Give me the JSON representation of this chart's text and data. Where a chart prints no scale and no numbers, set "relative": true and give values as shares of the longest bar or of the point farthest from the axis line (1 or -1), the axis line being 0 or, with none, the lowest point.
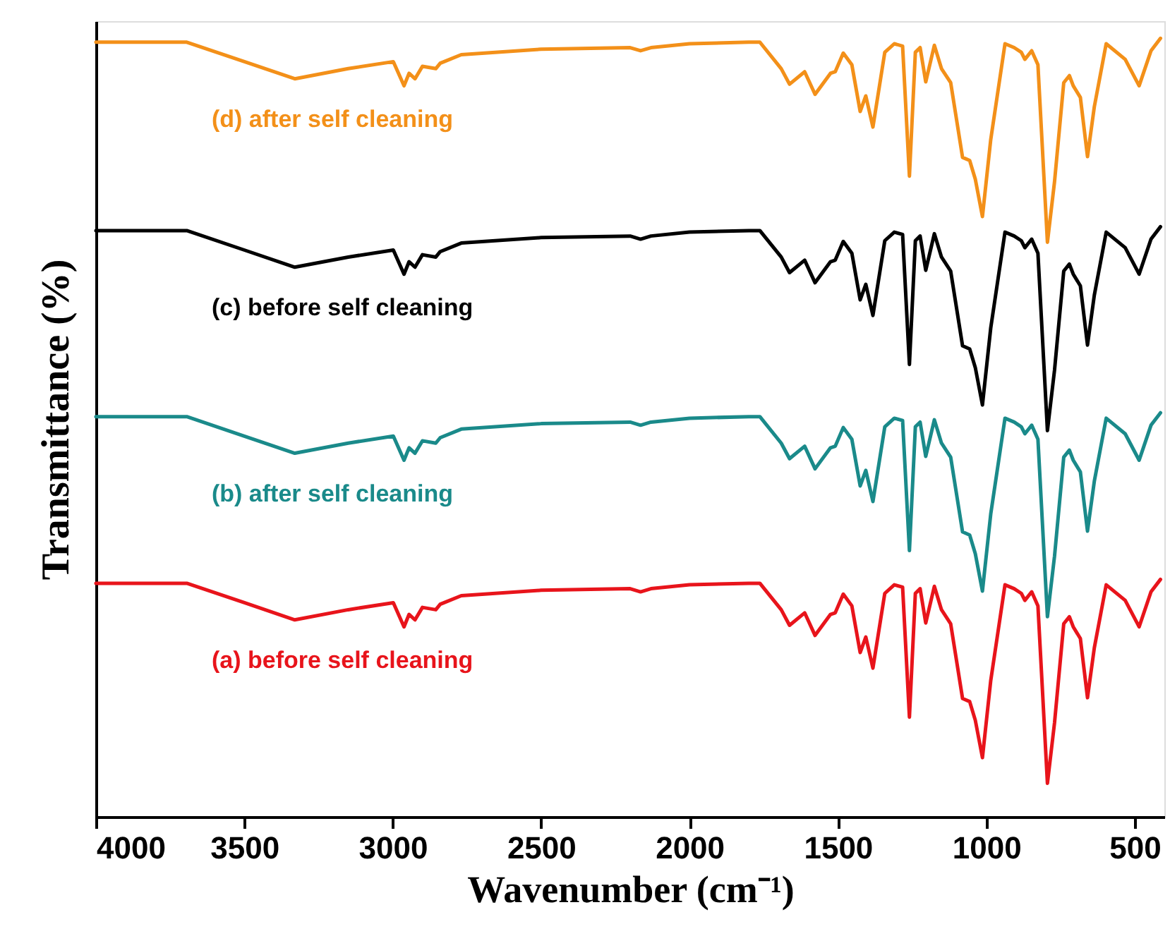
{
  "chart_data": {
    "type": "line",
    "relative": true,
    "xlabel": "Wavenumber (cm⁻¹)",
    "ylabel": "Transmittance (%)",
    "x": [
      4000,
      3694,
      3500,
      3330,
      3150,
      2998,
      2962,
      2945,
      2925,
      2900,
      2855,
      2840,
      2769,
      2500,
      2200,
      2165,
      2130,
      2000,
      1800,
      1763,
      1691,
      1663,
      1612,
      1577,
      1525,
      1509,
      1482,
      1453,
      1425,
      1406,
      1382,
      1342,
      1310,
      1282,
      1259,
      1239,
      1223,
      1204,
      1175,
      1151,
      1120,
      1080,
      1056,
      1037,
      1013,
      985,
      937,
      906,
      882,
      870,
      847,
      826,
      794,
      770,
      739,
      720,
      707,
      683,
      659,
      636,
      596,
      532,
      485,
      445,
      413
    ],
    "xlim": [
      4000,
      400
    ],
    "xticks": [
      4000,
      3500,
      3000,
      2500,
      2000,
      1500,
      1000,
      500
    ],
    "grid": false,
    "series": [
      {
        "name": "(a) before self cleaning",
        "color": "#e8141b",
        "values": [
          0.3,
          0.3,
          0.275,
          0.253,
          0.266,
          0.275,
          0.244,
          0.26,
          0.253,
          0.269,
          0.266,
          0.273,
          0.284,
          0.291,
          0.293,
          0.289,
          0.293,
          0.298,
          0.3,
          0.3,
          0.266,
          0.246,
          0.262,
          0.233,
          0.26,
          0.262,
          0.286,
          0.271,
          0.211,
          0.231,
          0.191,
          0.287,
          0.298,
          0.295,
          0.128,
          0.287,
          0.293,
          0.249,
          0.296,
          0.266,
          0.248,
          0.152,
          0.148,
          0.124,
          0.076,
          0.175,
          0.298,
          0.293,
          0.287,
          0.278,
          0.289,
          0.271,
          0.043,
          0.121,
          0.248,
          0.257,
          0.244,
          0.229,
          0.153,
          0.217,
          0.298,
          0.278,
          0.244,
          0.289,
          0.305
        ]
      },
      {
        "name": "(b) after self cleaning",
        "color": "#1a8a8a",
        "values": [
          0.514,
          0.514,
          0.489,
          0.467,
          0.48,
          0.489,
          0.458,
          0.474,
          0.467,
          0.483,
          0.48,
          0.487,
          0.498,
          0.505,
          0.507,
          0.503,
          0.507,
          0.512,
          0.514,
          0.514,
          0.48,
          0.46,
          0.476,
          0.447,
          0.474,
          0.476,
          0.5,
          0.485,
          0.425,
          0.445,
          0.405,
          0.501,
          0.512,
          0.509,
          0.342,
          0.501,
          0.507,
          0.463,
          0.51,
          0.48,
          0.462,
          0.366,
          0.362,
          0.338,
          0.29,
          0.389,
          0.512,
          0.507,
          0.501,
          0.492,
          0.503,
          0.485,
          0.257,
          0.335,
          0.462,
          0.471,
          0.458,
          0.443,
          0.367,
          0.431,
          0.512,
          0.492,
          0.458,
          0.503,
          0.519
        ]
      },
      {
        "name": "(c) before self cleaning",
        "color": "#000000",
        "values": [
          0.753,
          0.753,
          0.728,
          0.706,
          0.719,
          0.728,
          0.697,
          0.713,
          0.706,
          0.722,
          0.719,
          0.726,
          0.737,
          0.744,
          0.746,
          0.742,
          0.746,
          0.751,
          0.753,
          0.753,
          0.719,
          0.699,
          0.715,
          0.686,
          0.713,
          0.715,
          0.739,
          0.724,
          0.664,
          0.684,
          0.644,
          0.74,
          0.751,
          0.748,
          0.581,
          0.74,
          0.746,
          0.702,
          0.749,
          0.719,
          0.701,
          0.605,
          0.601,
          0.577,
          0.529,
          0.628,
          0.751,
          0.746,
          0.74,
          0.731,
          0.742,
          0.724,
          0.496,
          0.574,
          0.701,
          0.71,
          0.697,
          0.682,
          0.606,
          0.67,
          0.751,
          0.731,
          0.697,
          0.742,
          0.758
        ]
      },
      {
        "name": "(d) after self cleaning",
        "color": "#f39019",
        "values": [
          0.995,
          0.995,
          0.97,
          0.948,
          0.961,
          0.97,
          0.939,
          0.955,
          0.948,
          0.964,
          0.961,
          0.968,
          0.979,
          0.986,
          0.988,
          0.984,
          0.988,
          0.993,
          0.995,
          0.995,
          0.961,
          0.941,
          0.957,
          0.928,
          0.955,
          0.957,
          0.981,
          0.966,
          0.906,
          0.926,
          0.886,
          0.982,
          0.993,
          0.99,
          0.823,
          0.982,
          0.988,
          0.944,
          0.991,
          0.961,
          0.943,
          0.847,
          0.843,
          0.819,
          0.771,
          0.87,
          0.993,
          0.988,
          0.982,
          0.973,
          0.984,
          0.966,
          0.738,
          0.816,
          0.943,
          0.952,
          0.939,
          0.924,
          0.848,
          0.912,
          0.993,
          0.973,
          0.939,
          0.984,
          1.0
        ]
      }
    ]
  }
}
